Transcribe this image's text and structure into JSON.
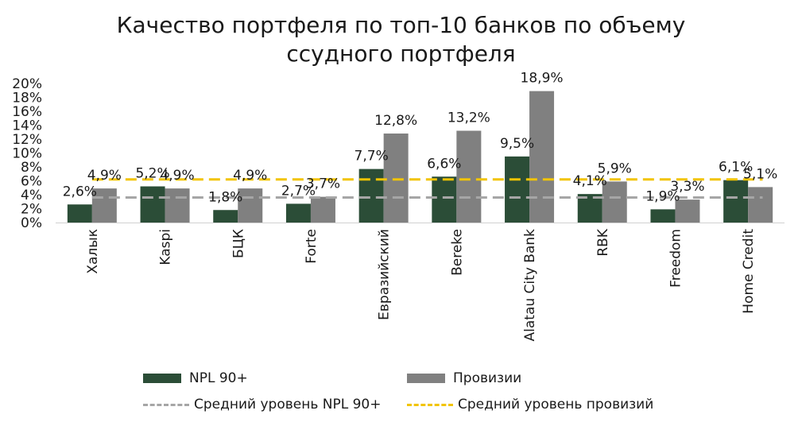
{
  "chart_data": {
    "type": "bar",
    "title_line1": "Качество портфеля по топ-10 банков по объему",
    "title_line2": "ссудного портфеля",
    "categories": [
      "Халык",
      "Kaspi",
      "БЦК",
      "Forte",
      "Евразийский",
      "Bereke",
      "Alatau City Bank",
      "RBK",
      "Freedom",
      "Home Credit"
    ],
    "series": [
      {
        "name": "NPL 90+",
        "color": "#2b4d37",
        "values": [
          2.6,
          5.2,
          1.8,
          2.7,
          7.7,
          6.6,
          9.5,
          4.1,
          1.9,
          6.1
        ],
        "labels": [
          "2,6%",
          "5,2%",
          "1,8%",
          "2,7%",
          "7,7%",
          "6,6%",
          "9,5%",
          "4,1%",
          "1,9%",
          "6,1%"
        ]
      },
      {
        "name": "Провизии",
        "color": "#808080",
        "values": [
          4.9,
          4.9,
          4.9,
          3.7,
          12.8,
          13.2,
          18.9,
          5.9,
          3.3,
          5.1
        ],
        "labels": [
          "4,9%",
          "4,9%",
          "4,9%",
          "3,7%",
          "12,8%",
          "13,2%",
          "18,9%",
          "5,9%",
          "3,3%",
          "5,1%"
        ]
      }
    ],
    "lines": [
      {
        "name": "Средний уровень NPL 90+",
        "color": "#a6a6a6",
        "value": 3.6
      },
      {
        "name": "Средний уровень провизий",
        "color": "#f2c400",
        "value": 6.2
      }
    ],
    "yticks": [
      "0%",
      "2%",
      "4%",
      "6%",
      "8%",
      "10%",
      "12%",
      "14%",
      "16%",
      "18%",
      "20%"
    ],
    "ylim": [
      0,
      20
    ],
    "legend_position": "bottom"
  }
}
